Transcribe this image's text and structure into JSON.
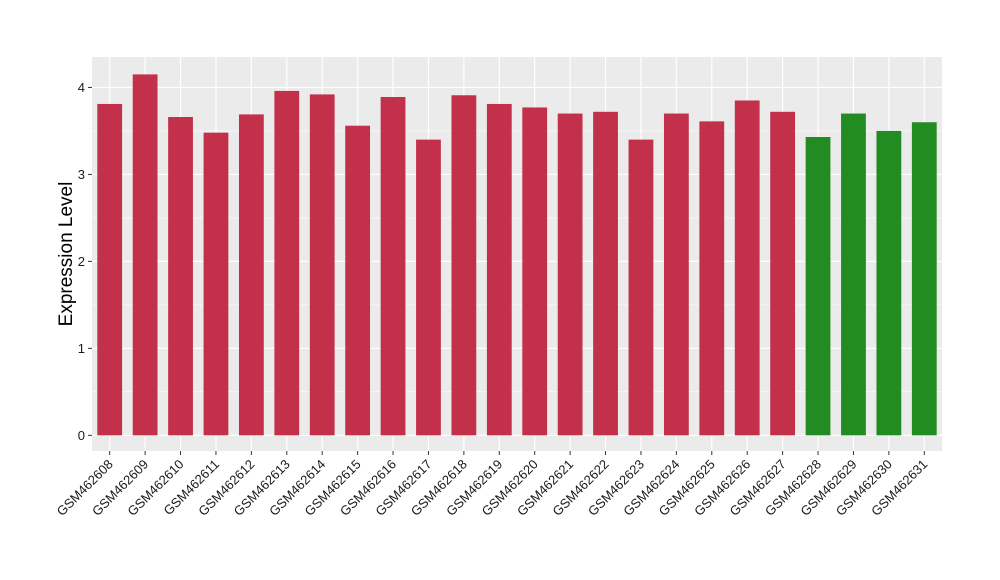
{
  "chart_data": {
    "type": "bar",
    "title": "",
    "xlabel": "",
    "ylabel": "Expression Level",
    "ylim": [
      -0.18,
      4.35
    ],
    "yticks": [
      0,
      1,
      2,
      3,
      4
    ],
    "grid": true,
    "legend": "none",
    "colors": {
      "red": "#C3304A",
      "green": "#228B22",
      "panel": "#EBEBEB",
      "gridline": "#FFFFFF"
    },
    "categories": [
      "GSM462608",
      "GSM462609",
      "GSM462610",
      "GSM462611",
      "GSM462612",
      "GSM462613",
      "GSM462614",
      "GSM462615",
      "GSM462616",
      "GSM462617",
      "GSM462618",
      "GSM462619",
      "GSM462620",
      "GSM462621",
      "GSM462622",
      "GSM462623",
      "GSM462624",
      "GSM462625",
      "GSM462626",
      "GSM462627",
      "GSM462628",
      "GSM462629",
      "GSM462630",
      "GSM462631"
    ],
    "values": [
      3.81,
      4.15,
      3.66,
      3.48,
      3.69,
      3.96,
      3.92,
      3.56,
      3.89,
      3.4,
      3.91,
      3.81,
      3.77,
      3.7,
      3.72,
      3.4,
      3.7,
      3.61,
      3.85,
      3.72,
      3.43,
      3.7,
      3.5,
      3.6
    ],
    "bar_colors": [
      "red",
      "red",
      "red",
      "red",
      "red",
      "red",
      "red",
      "red",
      "red",
      "red",
      "red",
      "red",
      "red",
      "red",
      "red",
      "red",
      "red",
      "red",
      "red",
      "red",
      "green",
      "green",
      "green",
      "green"
    ]
  }
}
